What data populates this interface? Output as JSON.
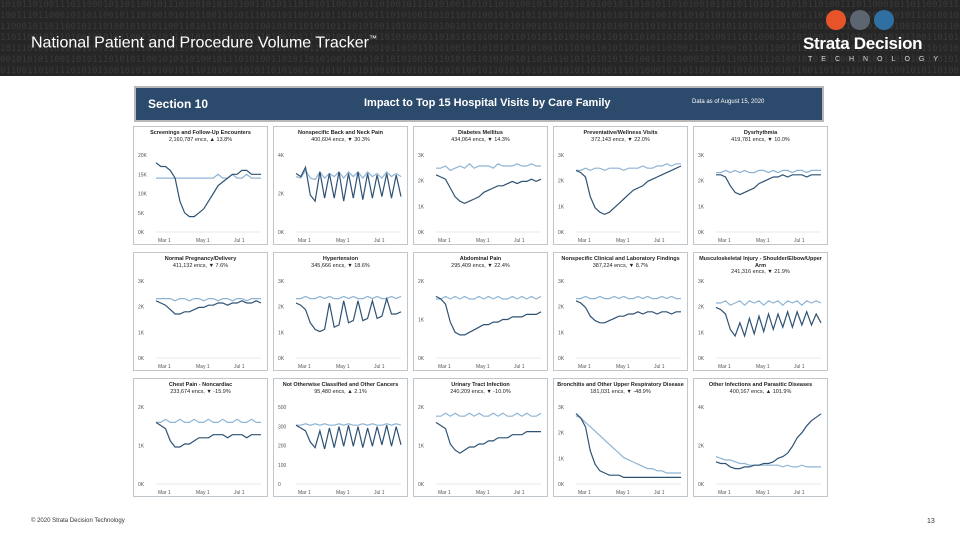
{
  "slide": {
    "title": "National Patient and Procedure Volume Tracker",
    "title_mark": "™",
    "brand": "Strata Decision",
    "brand_sub": "TECHNOLOGY",
    "footer_left": "© 2020 Strata Decision Technology",
    "page_number": "13",
    "binary_text": "1010110100111011000101101100101110100101010110011010111010101100101011010010111010100110101101010010110101101010010110101011010100101101011010110"
  },
  "section": {
    "number": "Section 10",
    "title": "Impact to Top 15 Hospital Visits by Care Family",
    "date": "Data as of August 15, 2020"
  },
  "colors": {
    "dark_line": "#2e5274",
    "light_line": "#8fb4d3",
    "banner": "#2c4a6b",
    "topbar": "#262626"
  },
  "x_ticks": [
    "Mar 1",
    "May 1",
    "Jul 1"
  ],
  "panels": [
    {
      "title": "Screenings and Follow-Up Encounters",
      "sub": "2,160,787 encs, ▲ 13.8%",
      "yticks": [
        "20K",
        "15K",
        "10K",
        "5K",
        "0K"
      ],
      "dark": [
        18,
        17,
        17,
        16,
        14,
        8,
        5,
        4,
        4,
        5,
        6,
        8,
        10,
        12,
        13,
        14,
        15,
        15,
        16,
        16,
        15,
        15,
        15
      ],
      "light": [
        14,
        14,
        14,
        14,
        14,
        14,
        14,
        14,
        14,
        14,
        14,
        14,
        14,
        15,
        14,
        14,
        15,
        14,
        14,
        15,
        14,
        14,
        14
      ],
      "ymax": 20
    },
    {
      "title": "Nonspecific Back and Neck Pain",
      "sub": "400,604 encs, ▼ 30.3%",
      "yticks": [
        "4K",
        "2K",
        "0K"
      ],
      "dark": [
        3.8,
        3.6,
        4.2,
        2.4,
        2.0,
        3.9,
        2.2,
        3.8,
        2.2,
        3.9,
        2.0,
        3.8,
        2.2,
        3.9,
        2.1,
        3.8,
        2.2,
        3.7,
        2.3,
        3.8,
        2.2,
        3.7,
        2.3
      ],
      "light": [
        3.6,
        3.5,
        4.0,
        3.5,
        3.4,
        3.9,
        3.5,
        3.8,
        3.6,
        3.9,
        3.5,
        3.9,
        3.6,
        3.9,
        3.5,
        3.9,
        3.6,
        3.8,
        3.5,
        3.9,
        3.6,
        3.8,
        3.6
      ],
      "ymax": 5
    },
    {
      "title": "Diabetes Mellitus",
      "sub": "434,064 encs, ▼ 14.3%",
      "yticks": [
        "3K",
        "2K",
        "1K",
        "0K"
      ],
      "dark": [
        2.6,
        2.5,
        2.4,
        2.0,
        1.6,
        1.4,
        1.3,
        1.4,
        1.5,
        1.6,
        1.8,
        1.9,
        2.0,
        2.1,
        2.1,
        2.2,
        2.3,
        2.2,
        2.3,
        2.3,
        2.4,
        2.3,
        2.4
      ],
      "light": [
        2.9,
        2.9,
        3.0,
        2.8,
        2.9,
        3.0,
        2.9,
        3.1,
        2.9,
        3.0,
        3.0,
        3.0,
        2.9,
        3.1,
        3.0,
        3.0,
        3.0,
        3.1,
        3.0,
        3.0,
        3.1,
        3.0,
        3.0
      ],
      "ymax": 3.5
    },
    {
      "title": "Preventative/Wellness Visits",
      "sub": "372,143 encs, ▼ 22.0%",
      "yticks": [
        "3K",
        "2K",
        "1K",
        "0K"
      ],
      "dark": [
        2.8,
        2.7,
        2.5,
        1.6,
        1.1,
        0.9,
        0.8,
        0.9,
        1.1,
        1.3,
        1.5,
        1.7,
        1.9,
        2.0,
        2.1,
        2.3,
        2.4,
        2.5,
        2.6,
        2.7,
        2.8,
        2.9,
        3.0
      ],
      "light": [
        2.8,
        2.8,
        2.9,
        2.8,
        2.9,
        2.9,
        2.8,
        2.9,
        2.9,
        2.9,
        2.8,
        2.9,
        2.9,
        2.9,
        3.0,
        2.9,
        2.9,
        3.0,
        3.0,
        3.1,
        3.0,
        3.1,
        3.1
      ],
      "ymax": 3.5
    },
    {
      "title": "Dysrhythmia",
      "sub": "419,781 encs, ▼ 10.0%",
      "yticks": [
        "3K",
        "2K",
        "1K",
        "0K"
      ],
      "dark": [
        2.6,
        2.6,
        2.5,
        2.1,
        1.8,
        1.7,
        1.8,
        1.9,
        2.0,
        2.2,
        2.3,
        2.4,
        2.5,
        2.5,
        2.6,
        2.5,
        2.6,
        2.6,
        2.6,
        2.5,
        2.6,
        2.6,
        2.6
      ],
      "light": [
        2.7,
        2.7,
        2.8,
        2.7,
        2.8,
        2.7,
        2.8,
        2.7,
        2.7,
        2.8,
        2.8,
        2.7,
        2.8,
        2.7,
        2.8,
        2.8,
        2.7,
        2.8,
        2.8,
        2.7,
        2.8,
        2.8,
        2.8
      ],
      "ymax": 3.5
    },
    {
      "title": "Normal Pregnancy/Delivery",
      "sub": "411,132 encs, ▼ 7.6%",
      "yticks": [
        "3K",
        "2K",
        "1K",
        "0K"
      ],
      "dark": [
        2.6,
        2.5,
        2.4,
        2.2,
        2.0,
        2.0,
        2.1,
        2.1,
        2.2,
        2.3,
        2.3,
        2.4,
        2.4,
        2.5,
        2.5,
        2.4,
        2.5,
        2.5,
        2.6,
        2.5,
        2.5,
        2.6,
        2.5
      ],
      "light": [
        2.7,
        2.7,
        2.7,
        2.7,
        2.6,
        2.7,
        2.7,
        2.6,
        2.7,
        2.7,
        2.6,
        2.7,
        2.7,
        2.6,
        2.7,
        2.7,
        2.6,
        2.7,
        2.7,
        2.6,
        2.7,
        2.7,
        2.7
      ],
      "ymax": 3.5
    },
    {
      "title": "Hypertension",
      "sub": "345,666 encs, ▼ 18.6%",
      "yticks": [
        "3K",
        "2K",
        "1K",
        "0K"
      ],
      "dark": [
        2.5,
        2.4,
        2.2,
        1.6,
        1.3,
        1.2,
        1.3,
        2.5,
        1.4,
        1.5,
        2.6,
        1.6,
        1.7,
        2.6,
        1.7,
        1.8,
        2.6,
        1.8,
        1.9,
        2.7,
        2.0,
        2.0,
        2.1
      ],
      "light": [
        2.7,
        2.7,
        2.8,
        2.7,
        2.7,
        2.8,
        2.7,
        2.8,
        2.7,
        2.7,
        2.8,
        2.7,
        2.8,
        2.7,
        2.7,
        2.8,
        2.7,
        2.8,
        2.7,
        2.7,
        2.8,
        2.7,
        2.8
      ],
      "ymax": 3.5
    },
    {
      "title": "Abdominal Pain",
      "sub": "295,409 encs, ▼ 22.4%",
      "yticks": [
        "2K",
        "1K",
        "0K"
      ],
      "dark": [
        2.4,
        2.3,
        2.1,
        1.4,
        1.0,
        0.9,
        0.9,
        1.0,
        1.1,
        1.2,
        1.3,
        1.3,
        1.4,
        1.4,
        1.5,
        1.5,
        1.6,
        1.6,
        1.6,
        1.7,
        1.7,
        1.7,
        1.8
      ],
      "light": [
        2.3,
        2.3,
        2.4,
        2.3,
        2.4,
        2.3,
        2.4,
        2.3,
        2.3,
        2.4,
        2.3,
        2.4,
        2.3,
        2.4,
        2.3,
        2.3,
        2.4,
        2.3,
        2.4,
        2.3,
        2.4,
        2.3,
        2.4
      ],
      "ymax": 3
    },
    {
      "title": "Nonspecific Clinical and Laboratory Findings",
      "sub": "387,224 encs, ▼ 8.7%",
      "yticks": [
        "3K",
        "2K",
        "1K",
        "0K"
      ],
      "dark": [
        2.6,
        2.5,
        2.3,
        1.9,
        1.7,
        1.6,
        1.6,
        1.7,
        1.8,
        1.9,
        1.9,
        2.0,
        2.0,
        2.1,
        2.0,
        2.1,
        2.1,
        2.0,
        2.1,
        2.1,
        2.0,
        2.1,
        2.1
      ],
      "light": [
        2.7,
        2.7,
        2.8,
        2.7,
        2.7,
        2.8,
        2.7,
        2.7,
        2.8,
        2.7,
        2.8,
        2.7,
        2.7,
        2.8,
        2.7,
        2.8,
        2.7,
        2.7,
        2.8,
        2.7,
        2.8,
        2.7,
        2.7
      ],
      "ymax": 3.5
    },
    {
      "title": "Musculoskeletal Injury - Shoulder/Elbow/Upper Arm",
      "sub": "241,316 encs, ▼ 21.9%",
      "yticks": [
        "3K",
        "2K",
        "1K",
        "0K"
      ],
      "dark": [
        2.3,
        2.2,
        2.0,
        1.3,
        1.0,
        1.6,
        1.0,
        1.8,
        1.1,
        1.9,
        1.2,
        2.0,
        1.3,
        2.0,
        1.4,
        2.1,
        1.4,
        2.1,
        1.5,
        2.1,
        1.5,
        2.0,
        1.6
      ],
      "light": [
        2.5,
        2.5,
        2.6,
        2.4,
        2.5,
        2.6,
        2.4,
        2.6,
        2.5,
        2.6,
        2.4,
        2.6,
        2.5,
        2.6,
        2.4,
        2.6,
        2.5,
        2.6,
        2.4,
        2.6,
        2.5,
        2.6,
        2.5
      ],
      "ymax": 3.5
    },
    {
      "title": "Chest Pain - Noncardiac",
      "sub": "233,674 encs, ▼ -15.9%",
      "yticks": [
        "2K",
        "1K",
        "0K"
      ],
      "dark": [
        2.0,
        1.9,
        1.8,
        1.4,
        1.2,
        1.2,
        1.3,
        1.3,
        1.4,
        1.5,
        1.5,
        1.5,
        1.6,
        1.6,
        1.6,
        1.5,
        1.6,
        1.6,
        1.6,
        1.5,
        1.6,
        1.6,
        1.6
      ],
      "light": [
        2.0,
        2.0,
        2.1,
        2.0,
        2.0,
        2.1,
        2.0,
        2.0,
        2.1,
        2.0,
        2.0,
        2.1,
        2.0,
        2.0,
        2.1,
        2.0,
        2.0,
        2.1,
        2.0,
        2.0,
        2.1,
        2.0,
        2.0
      ],
      "ymax": 2.5
    },
    {
      "title": "Not Otherwise Classified and Other Cancers",
      "sub": "95,480 encs, ▲ 2.1%",
      "yticks": [
        "500",
        "300",
        "200",
        "100",
        "0"
      ],
      "dark": [
        420,
        400,
        380,
        300,
        260,
        380,
        250,
        400,
        260,
        410,
        270,
        420,
        270,
        410,
        260,
        400,
        270,
        410,
        280,
        420,
        270,
        410,
        280
      ],
      "light": [
        420,
        420,
        430,
        420,
        430,
        420,
        430,
        420,
        420,
        430,
        420,
        430,
        420,
        420,
        430,
        420,
        430,
        420,
        420,
        430,
        420,
        430,
        420
      ],
      "ymax": 550
    },
    {
      "title": "Urinary Tract Infection",
      "sub": "240,209 encs, ▼ -10.0%",
      "yticks": [
        "2K",
        "1K",
        "0K"
      ],
      "dark": [
        2.0,
        1.9,
        1.8,
        1.3,
        1.1,
        1.0,
        1.1,
        1.2,
        1.2,
        1.3,
        1.3,
        1.4,
        1.4,
        1.5,
        1.5,
        1.5,
        1.6,
        1.6,
        1.6,
        1.7,
        1.7,
        1.7,
        1.7
      ],
      "light": [
        2.2,
        2.2,
        2.3,
        2.2,
        2.3,
        2.2,
        2.2,
        2.3,
        2.2,
        2.3,
        2.2,
        2.2,
        2.3,
        2.2,
        2.3,
        2.2,
        2.2,
        2.3,
        2.2,
        2.3,
        2.2,
        2.2,
        2.3
      ],
      "ymax": 2.5
    },
    {
      "title": "Bronchitis and Other Upper Respiratory Disease",
      "sub": "181,031 encs, ▼ -48.9%",
      "yticks": [
        "3K",
        "2K",
        "1K",
        "0K"
      ],
      "dark": [
        3.2,
        3.0,
        2.6,
        1.5,
        0.9,
        0.6,
        0.5,
        0.4,
        0.4,
        0.4,
        0.3,
        0.3,
        0.3,
        0.3,
        0.3,
        0.3,
        0.3,
        0.3,
        0.3,
        0.3,
        0.3,
        0.3,
        0.3
      ],
      "light": [
        3.1,
        3.0,
        2.8,
        2.6,
        2.4,
        2.2,
        2.0,
        1.8,
        1.6,
        1.4,
        1.2,
        1.1,
        1.0,
        0.9,
        0.8,
        0.7,
        0.7,
        0.6,
        0.6,
        0.5,
        0.5,
        0.5,
        0.5
      ],
      "ymax": 3.5
    },
    {
      "title": "Other Infections and Parasitic Diseases",
      "sub": "400,167 encs, ▲ 101.9%",
      "yticks": [
        "4K",
        "2K",
        "0K"
      ],
      "dark": [
        1.3,
        1.2,
        1.2,
        1.0,
        0.9,
        0.9,
        1.0,
        1.0,
        1.1,
        1.1,
        1.2,
        1.2,
        1.3,
        1.5,
        1.6,
        1.8,
        2.2,
        2.7,
        3.0,
        3.4,
        3.7,
        3.9,
        4.1
      ],
      "light": [
        1.6,
        1.5,
        1.4,
        1.4,
        1.3,
        1.2,
        1.2,
        1.1,
        1.1,
        1.1,
        1.1,
        1.1,
        1.1,
        1.1,
        1.0,
        1.1,
        1.0,
        1.0,
        1.1,
        1.0,
        1.0,
        1.0,
        1.0
      ],
      "ymax": 4.5
    }
  ]
}
